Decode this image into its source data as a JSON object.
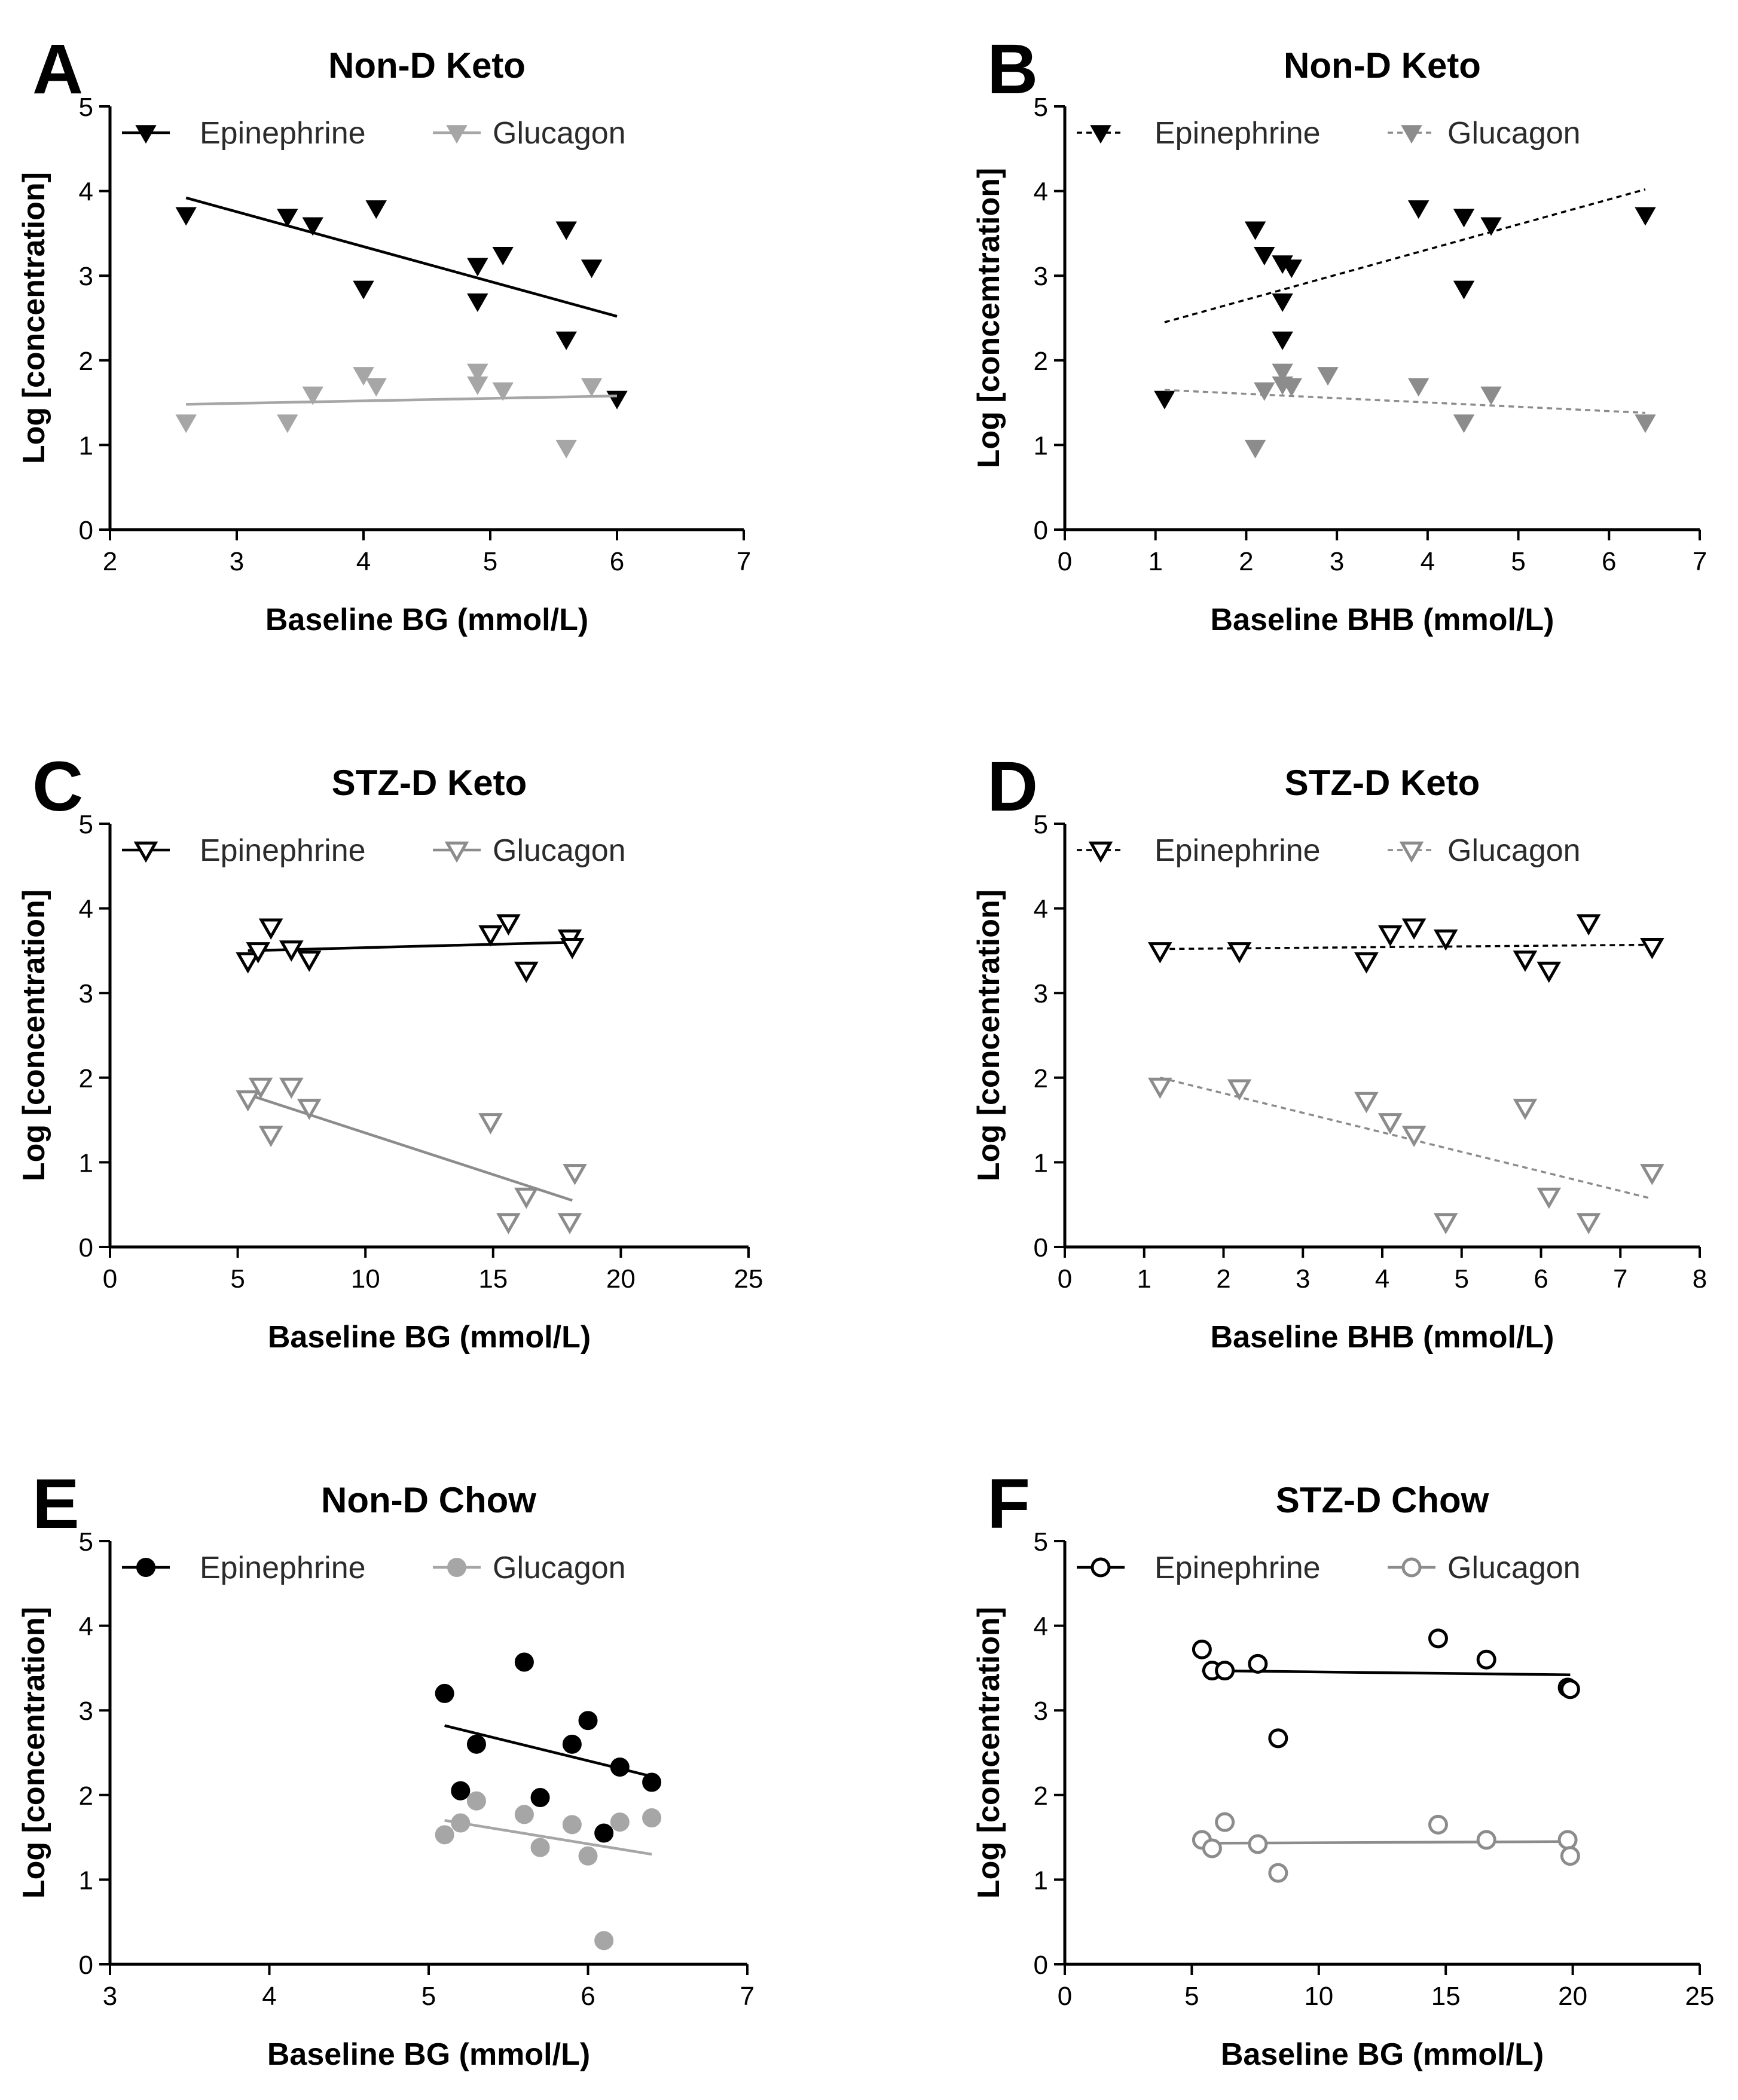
{
  "chart_data": [
    {
      "id": "A",
      "type": "scatter",
      "letter": "A",
      "title": "Non-D Keto",
      "xlabel": "Baseline BG (mmol/L)",
      "ylabel": "Log [concentration]",
      "xlim": [
        2,
        7
      ],
      "ylim": [
        0,
        5
      ],
      "xticks": [
        2,
        3,
        4,
        5,
        6,
        7
      ],
      "yticks": [
        0,
        1,
        2,
        3,
        4,
        5
      ],
      "legend_position": "top",
      "series": [
        {
          "name": "Epinephrine",
          "marker": "triangle-down",
          "filled": true,
          "color": "#000000",
          "dashed": false,
          "points": [
            [
              2.6,
              3.72
            ],
            [
              3.4,
              3.7
            ],
            [
              3.6,
              3.6
            ],
            [
              4.0,
              2.85
            ],
            [
              4.1,
              3.8
            ],
            [
              4.9,
              3.12
            ],
            [
              4.9,
              2.7
            ],
            [
              5.1,
              3.25
            ],
            [
              5.6,
              3.55
            ],
            [
              5.6,
              2.25
            ],
            [
              5.8,
              3.1
            ],
            [
              6.0,
              1.55
            ]
          ],
          "fit": [
            [
              2.6,
              3.92
            ],
            [
              6.0,
              2.52
            ]
          ]
        },
        {
          "name": "Glucagon",
          "marker": "triangle-down",
          "filled": true,
          "color": "#a6a6a6",
          "dashed": false,
          "points": [
            [
              2.6,
              1.27
            ],
            [
              3.4,
              1.27
            ],
            [
              3.6,
              1.6
            ],
            [
              4.0,
              1.83
            ],
            [
              4.1,
              1.7
            ],
            [
              4.9,
              1.87
            ],
            [
              4.9,
              1.72
            ],
            [
              5.1,
              1.65
            ],
            [
              5.6,
              0.97
            ],
            [
              5.8,
              1.7
            ]
          ],
          "fit": [
            [
              2.6,
              1.48
            ],
            [
              6.0,
              1.58
            ]
          ]
        }
      ]
    },
    {
      "id": "B",
      "type": "scatter",
      "letter": "B",
      "title": "Non-D Keto",
      "xlabel": "Baseline BHB (mmol/L)",
      "ylabel": "Log [concemtration]",
      "xlim": [
        0,
        7
      ],
      "ylim": [
        0,
        5
      ],
      "xticks": [
        0,
        1,
        2,
        3,
        4,
        5,
        6,
        7
      ],
      "yticks": [
        0,
        1,
        2,
        3,
        4,
        5
      ],
      "legend_position": "top",
      "series": [
        {
          "name": "Epinephrine",
          "marker": "triangle-down",
          "filled": true,
          "color": "#000000",
          "dashed": true,
          "points": [
            [
              1.1,
              1.55
            ],
            [
              2.1,
              3.55
            ],
            [
              2.2,
              3.25
            ],
            [
              2.4,
              3.15
            ],
            [
              2.5,
              3.1
            ],
            [
              2.4,
              2.7
            ],
            [
              2.4,
              2.25
            ],
            [
              3.9,
              3.8
            ],
            [
              4.4,
              3.7
            ],
            [
              4.7,
              3.6
            ],
            [
              4.4,
              2.85
            ],
            [
              6.4,
              3.72
            ]
          ],
          "fit": [
            [
              1.1,
              2.45
            ],
            [
              6.4,
              4.02
            ]
          ]
        },
        {
          "name": "Glucagon",
          "marker": "triangle-down",
          "filled": true,
          "color": "#8c8c8c",
          "dashed": true,
          "points": [
            [
              2.1,
              0.97
            ],
            [
              2.2,
              1.65
            ],
            [
              2.4,
              1.87
            ],
            [
              2.4,
              1.72
            ],
            [
              2.5,
              1.7
            ],
            [
              2.9,
              1.83
            ],
            [
              3.9,
              1.7
            ],
            [
              4.4,
              1.27
            ],
            [
              4.7,
              1.6
            ],
            [
              6.4,
              1.27
            ]
          ],
          "fit": [
            [
              1.1,
              1.65
            ],
            [
              6.4,
              1.38
            ]
          ]
        }
      ]
    },
    {
      "id": "C",
      "type": "scatter",
      "letter": "C",
      "title": "STZ-D Keto",
      "xlabel": "Baseline BG (mmol/L)",
      "ylabel": "Log [concentration]",
      "xlim": [
        0,
        25
      ],
      "ylim": [
        0,
        5
      ],
      "xticks": [
        0,
        5,
        10,
        15,
        20,
        25
      ],
      "yticks": [
        0,
        1,
        2,
        3,
        4,
        5
      ],
      "legend_position": "top",
      "series": [
        {
          "name": "Epinephrine",
          "marker": "triangle-down",
          "filled": false,
          "color": "#000000",
          "dashed": false,
          "points": [
            [
              5.4,
              3.38
            ],
            [
              5.8,
              3.5
            ],
            [
              6.3,
              3.78
            ],
            [
              7.1,
              3.52
            ],
            [
              7.8,
              3.4
            ],
            [
              14.9,
              3.7
            ],
            [
              15.6,
              3.83
            ],
            [
              16.3,
              3.27
            ],
            [
              18.0,
              3.65
            ],
            [
              18.1,
              3.55
            ]
          ],
          "fit": [
            [
              5.4,
              3.5
            ],
            [
              18.1,
              3.6
            ]
          ]
        },
        {
          "name": "Glucagon",
          "marker": "triangle-down",
          "filled": false,
          "color": "#8c8c8c",
          "dashed": false,
          "points": [
            [
              5.4,
              1.75
            ],
            [
              5.9,
              1.9
            ],
            [
              6.3,
              1.33
            ],
            [
              7.1,
              1.9
            ],
            [
              7.8,
              1.65
            ],
            [
              14.9,
              1.48
            ],
            [
              15.6,
              0.3
            ],
            [
              16.3,
              0.6
            ],
            [
              18.0,
              0.3
            ],
            [
              18.2,
              0.88
            ]
          ],
          "fit": [
            [
              5.4,
              1.8
            ],
            [
              18.1,
              0.55
            ]
          ]
        }
      ]
    },
    {
      "id": "D",
      "type": "scatter",
      "letter": "D",
      "title": "STZ-D Keto",
      "xlabel": "Baseline BHB (mmol/L)",
      "ylabel": "Log [concentration]",
      "xlim": [
        0,
        8
      ],
      "ylim": [
        0,
        5
      ],
      "xticks": [
        0,
        1,
        2,
        3,
        4,
        5,
        6,
        7,
        8
      ],
      "yticks": [
        0,
        1,
        2,
        3,
        4,
        5
      ],
      "legend_position": "top",
      "series": [
        {
          "name": "Epinephrine",
          "marker": "triangle-down",
          "filled": false,
          "color": "#000000",
          "dashed": true,
          "points": [
            [
              1.2,
              3.5
            ],
            [
              2.2,
              3.5
            ],
            [
              3.8,
              3.38
            ],
            [
              4.1,
              3.7
            ],
            [
              4.4,
              3.78
            ],
            [
              4.8,
              3.65
            ],
            [
              5.8,
              3.4
            ],
            [
              6.1,
              3.27
            ],
            [
              6.6,
              3.83
            ],
            [
              7.4,
              3.55
            ]
          ],
          "fit": [
            [
              1.2,
              3.52
            ],
            [
              7.4,
              3.57
            ]
          ]
        },
        {
          "name": "Glucagon",
          "marker": "triangle-down",
          "filled": false,
          "color": "#8c8c8c",
          "dashed": true,
          "points": [
            [
              1.2,
              1.9
            ],
            [
              2.2,
              1.88
            ],
            [
              3.8,
              1.73
            ],
            [
              4.1,
              1.48
            ],
            [
              4.4,
              1.33
            ],
            [
              4.8,
              0.3
            ],
            [
              5.8,
              1.65
            ],
            [
              6.1,
              0.6
            ],
            [
              6.6,
              0.3
            ],
            [
              7.4,
              0.88
            ]
          ],
          "fit": [
            [
              1.2,
              2.0
            ],
            [
              7.4,
              0.57
            ]
          ]
        }
      ]
    },
    {
      "id": "E",
      "type": "scatter",
      "letter": "E",
      "title": "Non-D Chow",
      "xlabel": "Baseline BG (mmol/L)",
      "ylabel": "Log [concentration]",
      "xlim": [
        3,
        7
      ],
      "ylim": [
        0,
        5
      ],
      "xticks": [
        3,
        4,
        5,
        6,
        7
      ],
      "yticks": [
        0,
        1,
        2,
        3,
        4,
        5
      ],
      "legend_position": "top",
      "series": [
        {
          "name": "Epinephrine",
          "marker": "circle",
          "filled": true,
          "color": "#000000",
          "dashed": false,
          "points": [
            [
              5.1,
              3.2
            ],
            [
              5.2,
              2.05
            ],
            [
              5.3,
              2.6
            ],
            [
              5.6,
              3.57
            ],
            [
              5.7,
              1.97
            ],
            [
              5.9,
              2.6
            ],
            [
              6.0,
              2.88
            ],
            [
              6.1,
              1.55
            ],
            [
              6.2,
              2.33
            ],
            [
              6.4,
              2.15
            ]
          ],
          "fit": [
            [
              5.1,
              2.82
            ],
            [
              6.4,
              2.22
            ]
          ]
        },
        {
          "name": "Glucagon",
          "marker": "circle",
          "filled": true,
          "color": "#a6a6a6",
          "dashed": false,
          "points": [
            [
              5.1,
              1.53
            ],
            [
              5.2,
              1.67
            ],
            [
              5.3,
              1.93
            ],
            [
              5.6,
              1.77
            ],
            [
              5.7,
              1.38
            ],
            [
              5.9,
              1.65
            ],
            [
              6.0,
              1.28
            ],
            [
              6.1,
              0.28
            ],
            [
              6.2,
              1.68
            ],
            [
              6.4,
              1.73
            ]
          ],
          "fit": [
            [
              5.1,
              1.7
            ],
            [
              6.4,
              1.3
            ]
          ]
        }
      ]
    },
    {
      "id": "F",
      "type": "scatter",
      "letter": "F",
      "title": "STZ-D Chow",
      "xlabel": "Baseline BG (mmol/L)",
      "ylabel": "Log [concentration]",
      "xlim": [
        0,
        25
      ],
      "ylim": [
        0,
        5
      ],
      "xticks": [
        0,
        5,
        10,
        15,
        20,
        25
      ],
      "yticks": [
        0,
        1,
        2,
        3,
        4,
        5
      ],
      "legend_position": "top",
      "series": [
        {
          "name": "Epinephrine",
          "marker": "circle",
          "filled": false,
          "color": "#000000",
          "dashed": false,
          "points": [
            [
              5.4,
              3.72
            ],
            [
              5.8,
              3.47
            ],
            [
              6.3,
              3.47
            ],
            [
              7.6,
              3.55
            ],
            [
              8.4,
              2.67
            ],
            [
              14.7,
              3.85
            ],
            [
              16.6,
              3.6
            ],
            [
              19.8,
              3.27
            ],
            [
              19.9,
              3.25
            ]
          ],
          "fit": [
            [
              5.4,
              3.47
            ],
            [
              19.9,
              3.42
            ]
          ]
        },
        {
          "name": "Glucagon",
          "marker": "circle",
          "filled": false,
          "color": "#8c8c8c",
          "dashed": false,
          "points": [
            [
              5.4,
              1.47
            ],
            [
              5.8,
              1.37
            ],
            [
              6.3,
              1.68
            ],
            [
              7.6,
              1.42
            ],
            [
              8.4,
              1.08
            ],
            [
              14.7,
              1.65
            ],
            [
              16.6,
              1.47
            ],
            [
              19.8,
              1.47
            ],
            [
              19.9,
              1.28
            ]
          ],
          "fit": [
            [
              5.4,
              1.43
            ],
            [
              19.9,
              1.45
            ]
          ]
        }
      ]
    }
  ]
}
